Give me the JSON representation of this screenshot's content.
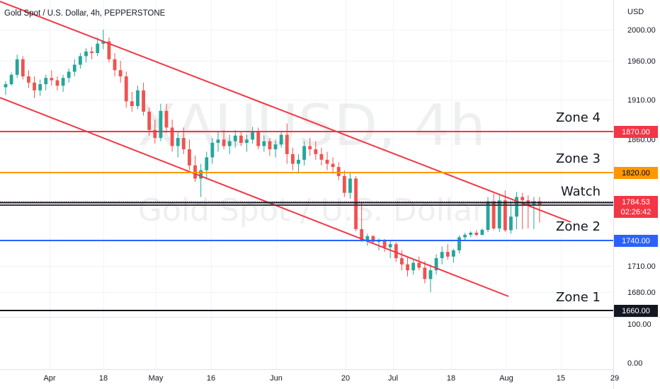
{
  "header": {
    "title": "Gold Spot / U.S. Dollar, 4h, PEPPERSTONE"
  },
  "watermark": {
    "symbol": "XAUUSD, 4h",
    "name": "Gold Spot / U.S. Dollar"
  },
  "chart_data": {
    "type": "candlestick",
    "title": "Gold Spot / U.S. Dollar, 4h, PEPPERSTONE",
    "y_unit": "USD",
    "y_ticks": [
      "2000.00",
      "1960.00",
      "1910.00",
      "1860.00",
      "1710.00",
      "1680.00"
    ],
    "y_tick_values": [
      2000,
      1960,
      1910,
      1860,
      1710,
      1680
    ],
    "x_ticks": [
      "Apr",
      "18",
      "May",
      "16",
      "Jun",
      "20",
      "Jul",
      "18",
      "Aug",
      "15",
      "29"
    ],
    "x_tick_index": [
      5,
      18,
      31,
      42,
      54,
      67,
      78,
      90,
      101,
      112,
      123
    ],
    "ohlc_index_span": [
      0,
      110
    ],
    "ohlc": [
      [
        1926,
        1934,
        1916,
        1930
      ],
      [
        1930,
        1945,
        1928,
        1942
      ],
      [
        1942,
        1968,
        1938,
        1962
      ],
      [
        1962,
        1966,
        1936,
        1940
      ],
      [
        1940,
        1948,
        1925,
        1932
      ],
      [
        1932,
        1940,
        1912,
        1922
      ],
      [
        1922,
        1936,
        1915,
        1930
      ],
      [
        1930,
        1942,
        1922,
        1938
      ],
      [
        1938,
        1948,
        1928,
        1935
      ],
      [
        1935,
        1940,
        1922,
        1928
      ],
      [
        1928,
        1942,
        1920,
        1938
      ],
      [
        1938,
        1950,
        1932,
        1946
      ],
      [
        1946,
        1962,
        1940,
        1955
      ],
      [
        1955,
        1970,
        1950,
        1966
      ],
      [
        1966,
        1976,
        1958,
        1972
      ],
      [
        1972,
        1978,
        1962,
        1970
      ],
      [
        1970,
        1990,
        1966,
        1982
      ],
      [
        1982,
        2000,
        1975,
        1985
      ],
      [
        1985,
        1990,
        1958,
        1962
      ],
      [
        1962,
        1970,
        1940,
        1948
      ],
      [
        1948,
        1960,
        1932,
        1940
      ],
      [
        1940,
        1946,
        1900,
        1908
      ],
      [
        1908,
        1920,
        1895,
        1902
      ],
      [
        1902,
        1928,
        1898,
        1922
      ],
      [
        1922,
        1932,
        1890,
        1895
      ],
      [
        1895,
        1900,
        1865,
        1872
      ],
      [
        1872,
        1885,
        1855,
        1862
      ],
      [
        1862,
        1905,
        1858,
        1896
      ],
      [
        1896,
        1905,
        1868,
        1875
      ],
      [
        1875,
        1885,
        1845,
        1852
      ],
      [
        1852,
        1870,
        1838,
        1862
      ],
      [
        1862,
        1875,
        1842,
        1848
      ],
      [
        1848,
        1860,
        1822,
        1828
      ],
      [
        1828,
        1840,
        1808,
        1812
      ],
      [
        1812,
        1830,
        1790,
        1822
      ],
      [
        1822,
        1845,
        1812,
        1838
      ],
      [
        1838,
        1862,
        1830,
        1856
      ],
      [
        1856,
        1870,
        1845,
        1860
      ],
      [
        1860,
        1872,
        1848,
        1852
      ],
      [
        1852,
        1866,
        1842,
        1858
      ],
      [
        1858,
        1872,
        1850,
        1865
      ],
      [
        1865,
        1870,
        1852,
        1856
      ],
      [
        1856,
        1866,
        1845,
        1860
      ],
      [
        1860,
        1876,
        1855,
        1870
      ],
      [
        1870,
        1875,
        1848,
        1852
      ],
      [
        1852,
        1865,
        1845,
        1858
      ],
      [
        1858,
        1862,
        1840,
        1848
      ],
      [
        1848,
        1860,
        1838,
        1854
      ],
      [
        1854,
        1870,
        1850,
        1866
      ],
      [
        1866,
        1880,
        1830,
        1842
      ],
      [
        1842,
        1850,
        1822,
        1830
      ],
      [
        1830,
        1842,
        1818,
        1835
      ],
      [
        1835,
        1858,
        1828,
        1852
      ],
      [
        1852,
        1862,
        1840,
        1848
      ],
      [
        1848,
        1858,
        1835,
        1842
      ],
      [
        1842,
        1850,
        1828,
        1835
      ],
      [
        1835,
        1845,
        1822,
        1830
      ],
      [
        1830,
        1838,
        1818,
        1826
      ],
      [
        1826,
        1832,
        1810,
        1815
      ],
      [
        1815,
        1822,
        1790,
        1795
      ],
      [
        1795,
        1820,
        1788,
        1812
      ],
      [
        1812,
        1815,
        1772,
        1778
      ],
      [
        1778,
        1785,
        1742,
        1748
      ],
      [
        1748,
        1765,
        1736,
        1758
      ],
      [
        1758,
        1762,
        1738,
        1742
      ],
      [
        1742,
        1752,
        1730,
        1745
      ],
      [
        1745,
        1750,
        1728,
        1734
      ],
      [
        1734,
        1745,
        1720,
        1738
      ],
      [
        1738,
        1742,
        1715,
        1720
      ],
      [
        1720,
        1730,
        1705,
        1712
      ],
      [
        1712,
        1722,
        1698,
        1705
      ],
      [
        1705,
        1718,
        1700,
        1714
      ],
      [
        1714,
        1722,
        1705,
        1708
      ],
      [
        1708,
        1716,
        1690,
        1695
      ],
      [
        1695,
        1712,
        1680,
        1705
      ],
      [
        1705,
        1725,
        1700,
        1720
      ],
      [
        1720,
        1735,
        1712,
        1728
      ],
      [
        1728,
        1738,
        1718,
        1722
      ],
      [
        1722,
        1732,
        1714,
        1730
      ],
      [
        1730,
        1760,
        1726,
        1755
      ],
      [
        1755,
        1768,
        1748,
        1762
      ],
      [
        1762,
        1772,
        1755,
        1768
      ],
      [
        1768,
        1775,
        1758,
        1762
      ],
      [
        1762,
        1780,
        1760,
        1776
      ],
      [
        1776,
        1790,
        1770,
        1785
      ],
      [
        1785,
        1794,
        1775,
        1780
      ],
      [
        1780,
        1792,
        1770,
        1786
      ],
      [
        1786,
        1798,
        1770,
        1775
      ],
      [
        1775,
        1785,
        1765,
        1782
      ],
      [
        1782,
        1796,
        1778,
        1790
      ],
      [
        1790,
        1795,
        1778,
        1786
      ],
      [
        1786,
        1792,
        1780,
        1784
      ],
      [
        1784,
        1790,
        1778,
        1785
      ],
      [
        1785,
        1790,
        1781,
        1784
      ]
    ],
    "levels": [
      {
        "label": "Zone 4",
        "value": "1870.00",
        "price": 1870,
        "color": "#f23645",
        "text_color": "#ffffff"
      },
      {
        "label": "Zone 3",
        "value": "1820.00",
        "price": 1820,
        "color": "#ff9800",
        "text_color": "#000000"
      },
      {
        "label": "Watch",
        "value": "",
        "price": 1786,
        "color": "#131722",
        "text_color": "#ffffff"
      },
      {
        "label": "Zone 2",
        "value": "1780.00",
        "price": 1780,
        "color": "#363a45",
        "text_color": "#ffffff"
      },
      {
        "label": "",
        "value": "1740.00",
        "price": 1740,
        "color": "#2962ff",
        "text_color": "#ffffff"
      },
      {
        "label": "Zone 1",
        "value": "1660.00",
        "price": 1660,
        "color": "#131722",
        "text_color": "#ffffff"
      }
    ],
    "last_price": {
      "value": "1784.53",
      "countdown": "02:26:42",
      "price": 1784.53,
      "color": "#f23645"
    },
    "channel_color": "#f23645",
    "volume_axis": {
      "ticks": [
        "100.00",
        "0.00"
      ]
    }
  },
  "colors": {
    "up": "#26a69a",
    "down": "#ef5350",
    "grid": "#f0f3fa",
    "axis_text": "#131722"
  }
}
